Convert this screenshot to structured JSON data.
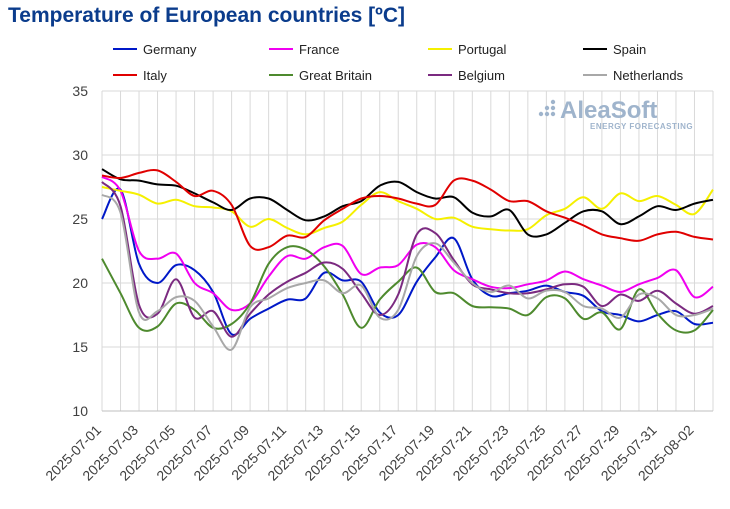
{
  "chart_data": {
    "type": "line",
    "title": "Temperature of European countries [ºC]",
    "xlabel": "",
    "ylabel": "",
    "ylim": [
      10,
      35
    ],
    "yticks": [
      10,
      15,
      20,
      25,
      30,
      35
    ],
    "grid": true,
    "legend_position": "top",
    "x_tick_labels": [
      "2025-07-01",
      "2025-07-03",
      "2025-07-05",
      "2025-07-07",
      "2025-07-09",
      "2025-07-11",
      "2025-07-13",
      "2025-07-15",
      "2025-07-17",
      "2025-07-19",
      "2025-07-21",
      "2025-07-23",
      "2025-07-25",
      "2025-07-27",
      "2025-07-29",
      "2025-07-31",
      "2025-08-02"
    ],
    "categories": [
      "2025-07-01",
      "2025-07-02",
      "2025-07-03",
      "2025-07-04",
      "2025-07-05",
      "2025-07-06",
      "2025-07-07",
      "2025-07-08",
      "2025-07-09",
      "2025-07-10",
      "2025-07-11",
      "2025-07-12",
      "2025-07-13",
      "2025-07-14",
      "2025-07-15",
      "2025-07-16",
      "2025-07-17",
      "2025-07-18",
      "2025-07-19",
      "2025-07-20",
      "2025-07-21",
      "2025-07-22",
      "2025-07-23",
      "2025-07-24",
      "2025-07-25",
      "2025-07-26",
      "2025-07-27",
      "2025-07-28",
      "2025-07-29",
      "2025-07-30",
      "2025-07-31",
      "2025-08-01",
      "2025-08-02",
      "2025-08-03"
    ],
    "series": [
      {
        "name": "Germany",
        "color": "#0018c8",
        "values": [
          25.0,
          27.3,
          21.5,
          20.0,
          21.4,
          21.0,
          19.3,
          16.0,
          17.2,
          18.0,
          18.7,
          18.8,
          20.8,
          20.2,
          20.1,
          17.7,
          17.5,
          20.1,
          22.0,
          23.5,
          20.3,
          19.0,
          19.2,
          19.4,
          19.8,
          19.3,
          19.0,
          17.8,
          17.5,
          17.0,
          17.5,
          17.8,
          16.8,
          16.9
        ]
      },
      {
        "name": "France",
        "color": "#f000f0",
        "values": [
          28.3,
          27.2,
          22.5,
          21.9,
          22.3,
          20.0,
          19.2,
          17.9,
          18.4,
          20.5,
          22.1,
          21.9,
          22.8,
          22.9,
          20.7,
          21.2,
          21.4,
          23.0,
          22.8,
          21.0,
          20.3,
          19.7,
          19.6,
          19.9,
          20.2,
          20.9,
          20.3,
          19.8,
          19.3,
          19.9,
          20.4,
          21.0,
          18.9,
          19.7
        ]
      },
      {
        "name": "Portugal",
        "color": "#f5f000",
        "values": [
          27.5,
          27.2,
          26.9,
          26.2,
          26.5,
          26.0,
          25.9,
          25.6,
          24.4,
          25.0,
          24.3,
          23.8,
          24.3,
          24.8,
          26.1,
          27.1,
          26.4,
          25.8,
          25.0,
          25.1,
          24.4,
          24.2,
          24.1,
          24.2,
          25.3,
          25.8,
          26.7,
          25.8,
          27.0,
          26.4,
          26.8,
          26.1,
          25.4,
          27.3
        ]
      },
      {
        "name": "Spain",
        "color": "#000000",
        "values": [
          28.9,
          28.1,
          28.0,
          27.7,
          27.6,
          27.0,
          26.3,
          25.7,
          26.6,
          26.6,
          25.7,
          24.9,
          25.2,
          26.0,
          26.4,
          27.6,
          27.9,
          27.1,
          26.6,
          26.7,
          25.5,
          25.2,
          25.7,
          23.8,
          23.8,
          24.7,
          25.6,
          25.6,
          24.6,
          25.2,
          26.0,
          25.7,
          26.2,
          26.5
        ]
      },
      {
        "name": "Italy",
        "color": "#e00000",
        "values": [
          28.4,
          28.2,
          28.6,
          28.8,
          27.9,
          26.8,
          27.2,
          26.1,
          22.9,
          22.8,
          23.7,
          23.6,
          24.9,
          25.8,
          26.6,
          26.8,
          26.6,
          26.2,
          26.1,
          28.0,
          28.0,
          27.3,
          26.4,
          26.4,
          25.6,
          25.1,
          24.5,
          23.8,
          23.5,
          23.3,
          23.8,
          24.0,
          23.6,
          23.4
        ]
      },
      {
        "name": "Great Britain",
        "color": "#4e8a2e",
        "values": [
          21.9,
          19.2,
          16.5,
          16.6,
          18.4,
          17.9,
          16.5,
          16.8,
          18.4,
          21.5,
          22.8,
          22.6,
          21.3,
          19.1,
          16.5,
          18.7,
          20.1,
          21.2,
          19.3,
          19.2,
          18.2,
          18.1,
          18.0,
          17.5,
          18.9,
          18.8,
          17.2,
          17.7,
          16.4,
          19.5,
          17.6,
          16.3,
          16.3,
          17.9
        ]
      },
      {
        "name": "Belgium",
        "color": "#7b2a80",
        "values": [
          27.9,
          26.0,
          18.3,
          17.6,
          20.3,
          17.3,
          17.8,
          15.8,
          17.6,
          19.1,
          20.1,
          20.8,
          21.6,
          21.1,
          19.2,
          17.5,
          19.1,
          23.8,
          23.9,
          21.8,
          19.9,
          19.5,
          19.2,
          19.2,
          19.5,
          19.9,
          19.7,
          18.2,
          19.1,
          18.6,
          19.4,
          18.4,
          17.6,
          18.2
        ]
      },
      {
        "name": "Netherlands",
        "color": "#a8a8a8",
        "values": [
          26.9,
          25.5,
          17.7,
          17.8,
          18.9,
          18.6,
          16.6,
          14.8,
          18.1,
          18.8,
          19.6,
          20.0,
          20.2,
          19.2,
          19.8,
          17.3,
          17.9,
          22.1,
          23.1,
          21.6,
          20.0,
          19.3,
          19.8,
          18.8,
          19.4,
          19.3,
          18.2,
          18.0,
          17.3,
          19.1,
          18.8,
          17.5,
          17.5,
          18.0
        ]
      }
    ]
  },
  "logo": {
    "name": "AleaSoft",
    "tagline": "ENERGY FORECASTING"
  }
}
